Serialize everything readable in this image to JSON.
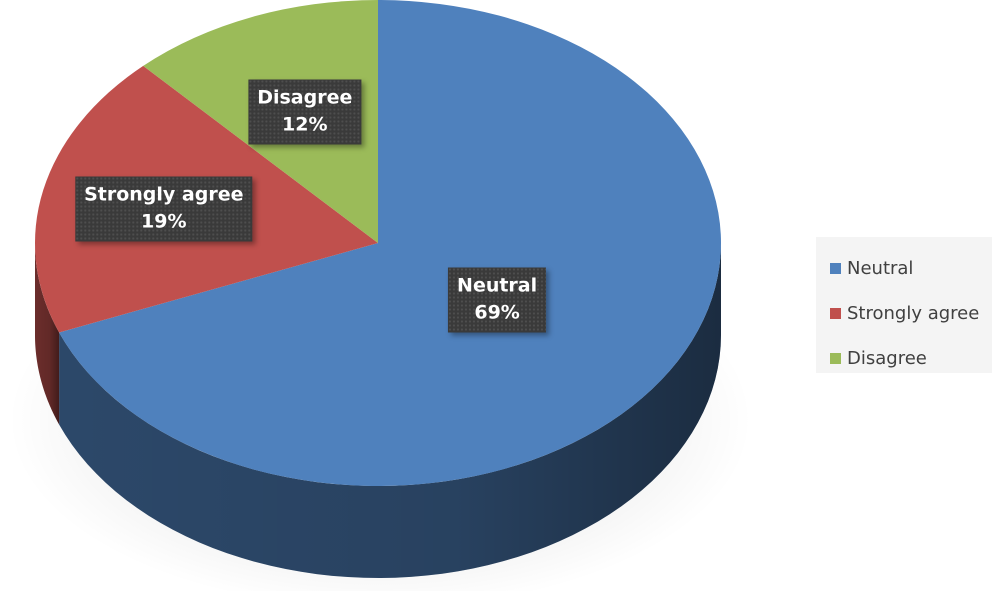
{
  "chart_data": {
    "type": "pie",
    "title": "",
    "categories": [
      "Neutral",
      "Strongly agree",
      "Disagree"
    ],
    "values": [
      69,
      19,
      12
    ],
    "colors": [
      "#4f81bd",
      "#c0504d",
      "#9bbb59"
    ],
    "value_labels": [
      "69%",
      "19%",
      "12%"
    ],
    "start_angle_deg": 0,
    "direction": "clockwise",
    "three_d": true,
    "legend": {
      "position": "right",
      "entries": [
        "Neutral",
        "Strongly agree",
        "Disagree"
      ]
    }
  }
}
